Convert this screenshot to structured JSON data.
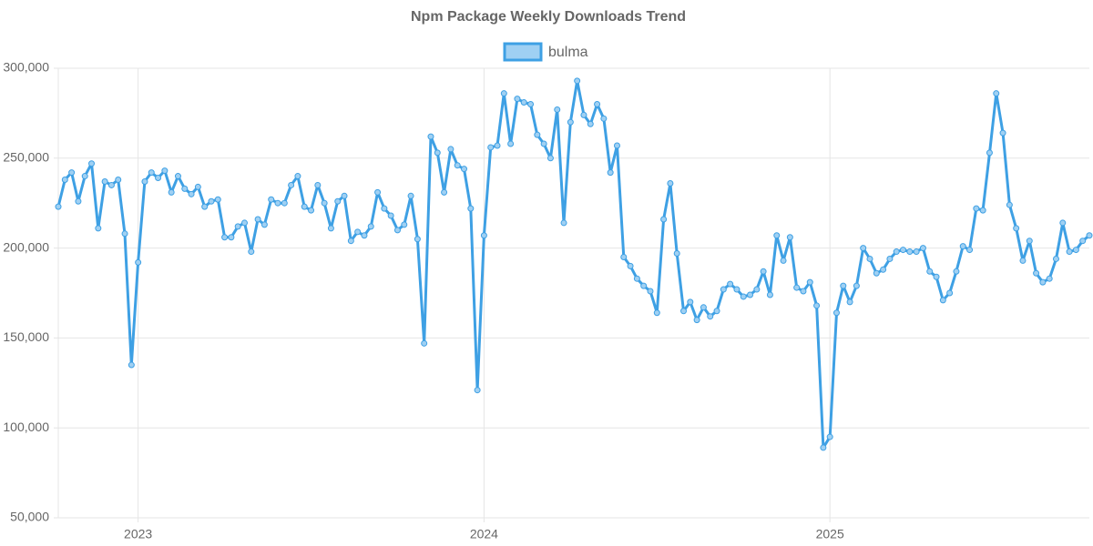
{
  "chart_data": {
    "type": "line",
    "title": "Npm Package Weekly Downloads Trend",
    "categories": [
      null,
      null,
      null,
      null,
      null,
      null,
      null,
      null,
      null,
      null,
      null,
      null,
      "2023",
      null,
      null,
      null,
      null,
      null,
      null,
      null,
      null,
      null,
      null,
      null,
      null,
      null,
      null,
      null,
      null,
      null,
      null,
      null,
      null,
      null,
      null,
      null,
      null,
      null,
      null,
      null,
      null,
      null,
      null,
      null,
      null,
      null,
      null,
      null,
      null,
      null,
      null,
      null,
      null,
      null,
      null,
      null,
      null,
      null,
      null,
      null,
      null,
      null,
      null,
      null,
      "2024",
      null,
      null,
      null,
      null,
      null,
      null,
      null,
      null,
      null,
      null,
      null,
      null,
      null,
      null,
      null,
      null,
      null,
      null,
      null,
      null,
      null,
      null,
      null,
      null,
      null,
      null,
      null,
      null,
      null,
      null,
      null,
      null,
      null,
      null,
      null,
      null,
      null,
      null,
      null,
      null,
      null,
      null,
      null,
      null,
      null,
      null,
      null,
      null,
      null,
      null,
      null,
      "2025",
      null,
      null,
      null,
      null,
      null,
      null,
      null,
      null,
      null,
      null,
      null,
      null,
      null,
      null,
      null,
      null,
      null,
      null,
      null,
      null,
      null,
      null,
      null,
      null,
      null,
      null,
      null,
      null,
      null,
      null,
      null,
      null,
      null,
      null,
      null,
      null,
      null,
      null,
      null
    ],
    "series": [
      {
        "name": "bulma",
        "color": "#3ea0e4",
        "fill": "#9fd0f3",
        "values": [
          223000,
          238000,
          242000,
          226000,
          240000,
          247000,
          211000,
          237000,
          235000,
          238000,
          208000,
          135000,
          192000,
          237000,
          242000,
          239000,
          243000,
          231000,
          240000,
          233000,
          230000,
          234000,
          223000,
          226000,
          227000,
          206000,
          206000,
          212000,
          214000,
          198000,
          216000,
          213000,
          227000,
          225000,
          225000,
          235000,
          240000,
          223000,
          221000,
          235000,
          225000,
          211000,
          226000,
          229000,
          204000,
          209000,
          207000,
          212000,
          231000,
          222000,
          218000,
          210000,
          213000,
          229000,
          205000,
          147000,
          262000,
          253000,
          231000,
          255000,
          246000,
          244000,
          222000,
          121000,
          207000,
          256000,
          257000,
          286000,
          258000,
          283000,
          281000,
          280000,
          263000,
          258000,
          250000,
          277000,
          214000,
          270000,
          293000,
          274000,
          269000,
          280000,
          272000,
          242000,
          257000,
          195000,
          190000,
          183000,
          179000,
          176000,
          164000,
          216000,
          236000,
          197000,
          165000,
          170000,
          160000,
          167000,
          162000,
          165000,
          177000,
          180000,
          177000,
          173000,
          174000,
          177000,
          187000,
          174000,
          207000,
          193000,
          206000,
          178000,
          176000,
          181000,
          168000,
          89000,
          95000,
          164000,
          179000,
          170000,
          179000,
          200000,
          194000,
          186000,
          188000,
          194000,
          198000,
          199000,
          198000,
          198000,
          200000,
          187000,
          184000,
          171000,
          175000,
          187000,
          201000,
          199000,
          222000,
          221000,
          253000,
          286000,
          264000,
          224000,
          211000,
          193000,
          204000,
          186000,
          181000,
          183000,
          194000,
          214000,
          198000,
          199000,
          204000,
          207000
        ]
      }
    ],
    "ylim": [
      50000,
      300000
    ],
    "yticks": [
      {
        "value": 50000,
        "label": "50,000"
      },
      {
        "value": 100000,
        "label": "100,000"
      },
      {
        "value": 150000,
        "label": "150,000"
      },
      {
        "value": 200000,
        "label": "200,000"
      },
      {
        "value": 250000,
        "label": "250,000"
      },
      {
        "value": 300000,
        "label": "300,000"
      }
    ],
    "grid": true,
    "legend": "top"
  }
}
